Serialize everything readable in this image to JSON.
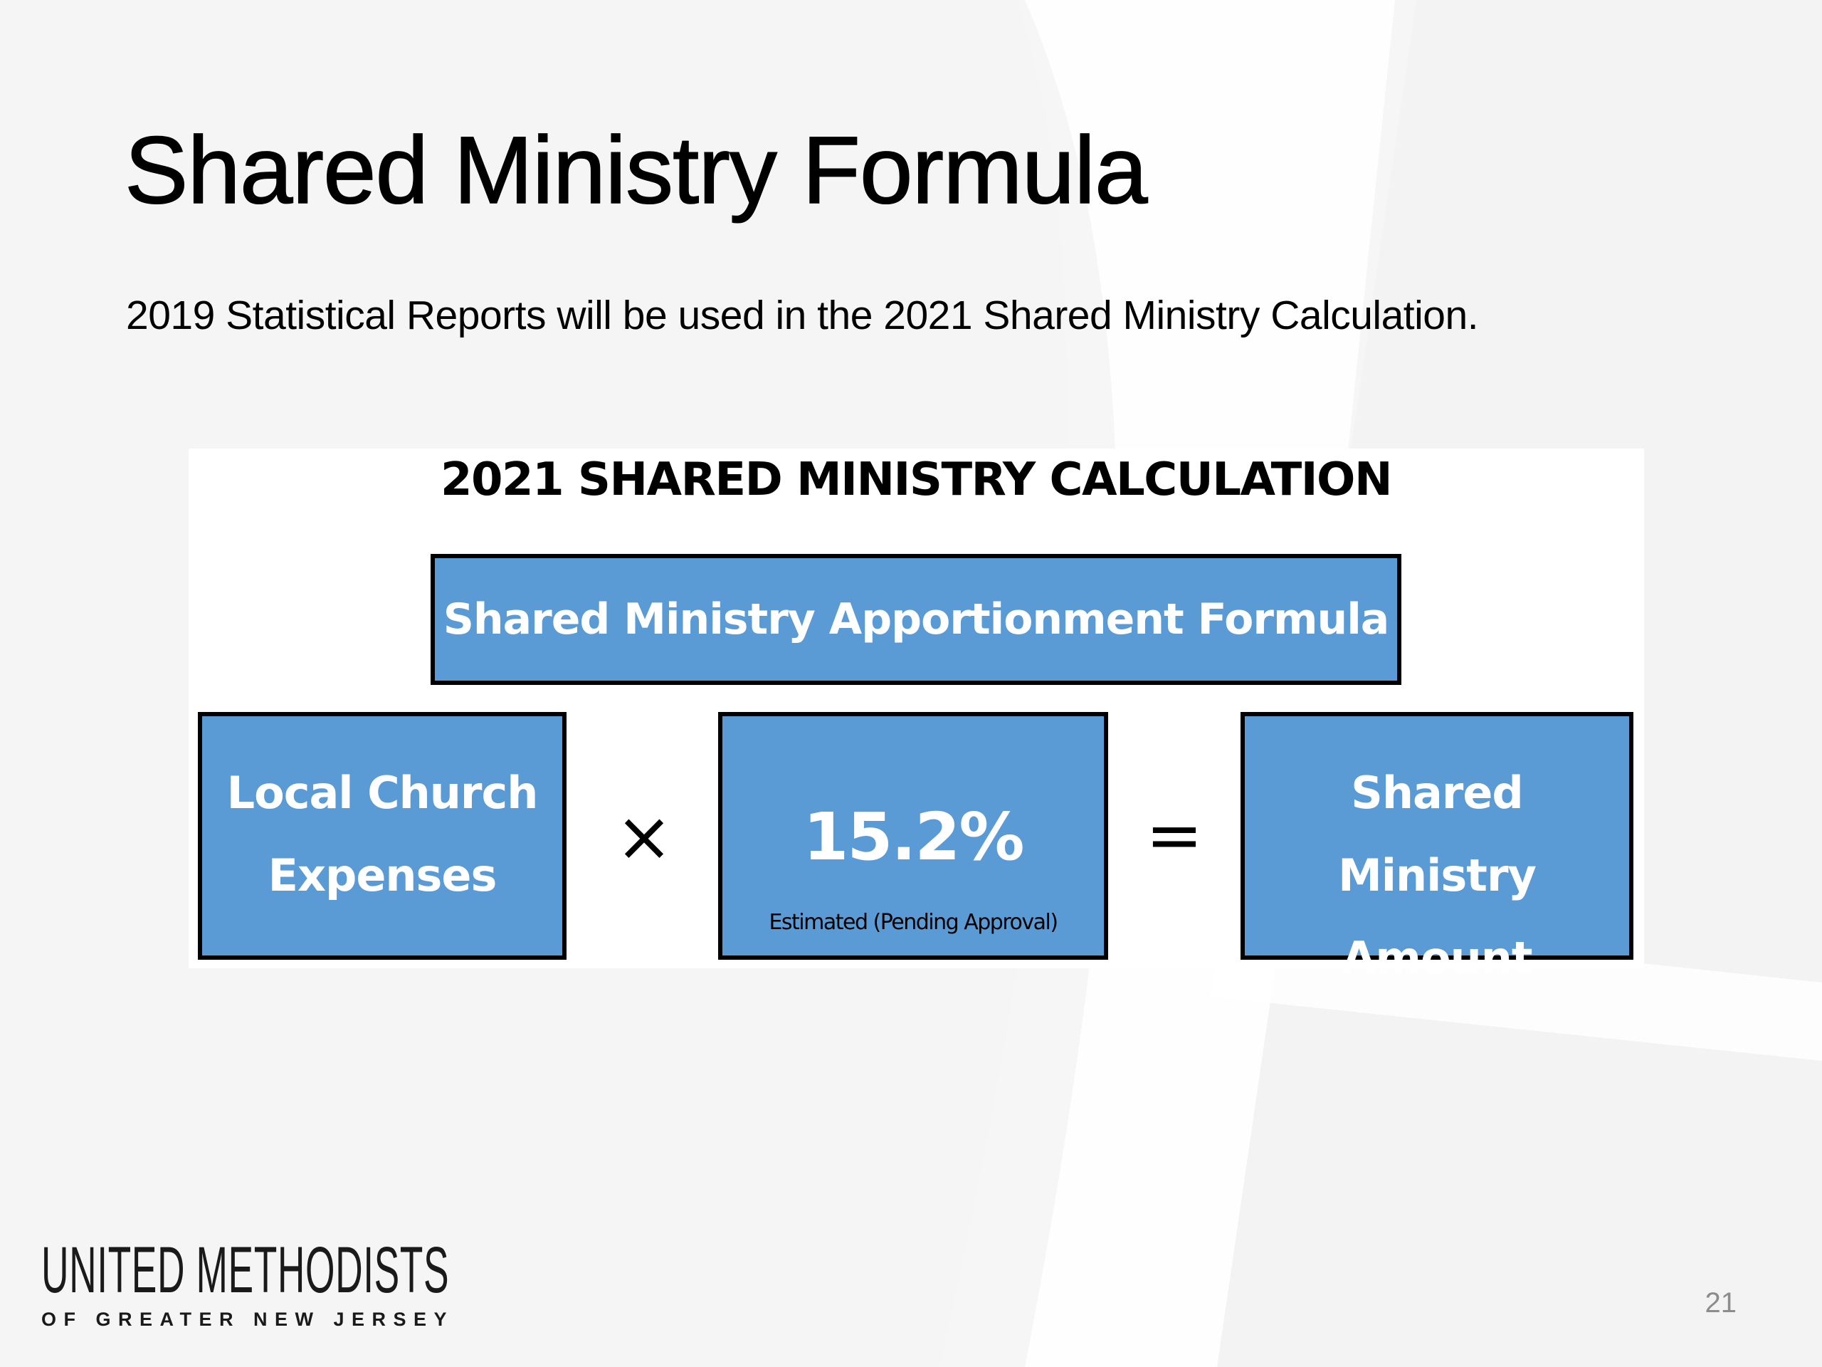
{
  "slide": {
    "title": "Shared Ministry Formula",
    "subtitle": "2019 Statistical Reports will be used in the 2021 Shared Ministry Calculation.",
    "page_number": "21"
  },
  "diagram": {
    "title": "2021 SHARED MINISTRY CALCULATION",
    "top_box": "Shared Ministry Apportionment Formula",
    "left_box": [
      "Local Church",
      "Expenses"
    ],
    "operator_multiply": "×",
    "middle_box": {
      "value": "15.2%",
      "note": "Estimated (Pending Approval)"
    },
    "operator_equals": "=",
    "right_box": [
      "Shared Ministry",
      "Amount"
    ]
  },
  "logo": {
    "line1": "UNITED METHODISTS",
    "line2": "OF GREATER NEW JERSEY"
  },
  "colors": {
    "box_fill": "#5b9bd5",
    "box_border": "#000000",
    "box_text": "#ffffff",
    "background": "#f6f6f6"
  }
}
